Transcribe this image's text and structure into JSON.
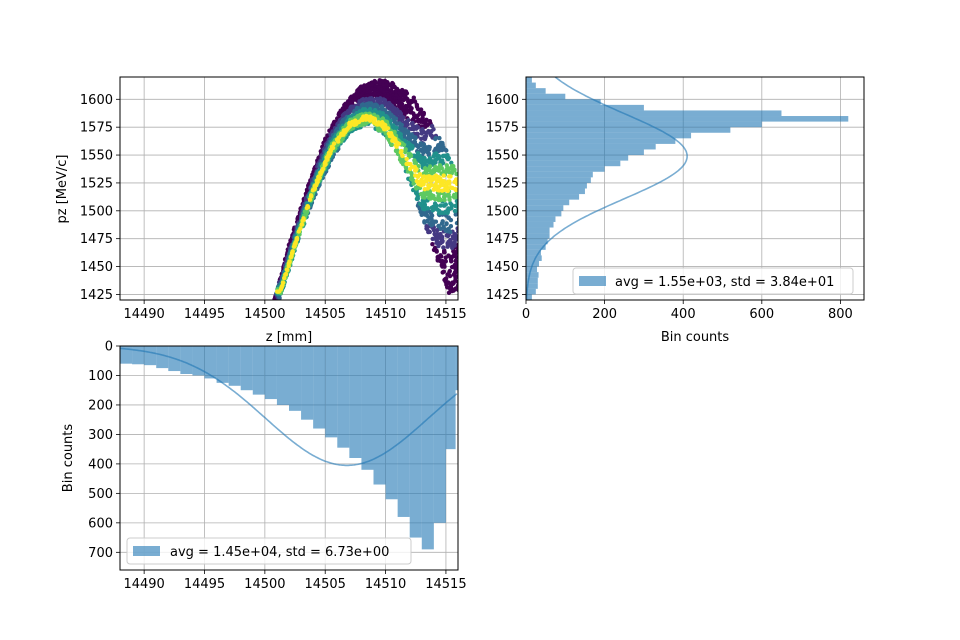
{
  "colors": {
    "hist": "#1f77b4",
    "grid": "#b0b0b0",
    "scatter_low": "#440154",
    "scatter_mid": "#21918c",
    "scatter_high": "#fde725"
  },
  "chart_data": [
    {
      "id": "scatter",
      "type": "scatter",
      "xlabel": "z [mm]",
      "ylabel": "pz [MeV/c]",
      "xlim": [
        14488,
        14516
      ],
      "ylim": [
        1420,
        1620
      ],
      "xticks": [
        "14490",
        "14495",
        "14500",
        "14505",
        "14510",
        "14515"
      ],
      "yticks": [
        "1425",
        "1450",
        "1475",
        "1500",
        "1525",
        "1550",
        "1575",
        "1600"
      ],
      "grid": true,
      "distribution": {
        "upper_edge": [
          [
            14500.8,
            1420
          ],
          [
            14502,
            1470
          ],
          [
            14503.5,
            1520
          ],
          [
            14505,
            1565
          ],
          [
            14506.5,
            1595
          ],
          [
            14508,
            1612
          ],
          [
            14509.5,
            1618
          ],
          [
            14511,
            1614
          ],
          [
            14512.5,
            1600
          ],
          [
            14514,
            1575
          ],
          [
            14515.5,
            1545
          ],
          [
            14516,
            1530
          ]
        ],
        "lower_edge": [
          [
            14501.2,
            1420
          ],
          [
            14502.5,
            1465
          ],
          [
            14504,
            1510
          ],
          [
            14505.5,
            1545
          ],
          [
            14507,
            1570
          ],
          [
            14508.5,
            1578
          ],
          [
            14510,
            1568
          ],
          [
            14511.5,
            1540
          ],
          [
            14513,
            1495
          ],
          [
            14514.5,
            1450
          ],
          [
            14515.3,
            1425
          ]
        ],
        "dense_ridge": [
          [
            14501.3,
            1428
          ],
          [
            14502.5,
            1470
          ],
          [
            14504,
            1518
          ],
          [
            14505.5,
            1555
          ],
          [
            14507,
            1577
          ],
          [
            14508.5,
            1584
          ],
          [
            14510,
            1575
          ],
          [
            14511.5,
            1550
          ],
          [
            14513,
            1525
          ]
        ]
      }
    },
    {
      "id": "pz-hist",
      "type": "bar",
      "orientation": "horizontal",
      "xlabel": "Bin counts",
      "ylabel": "",
      "xlim": [
        0,
        860
      ],
      "ylim": [
        1420,
        1620
      ],
      "xticks": [
        "0",
        "200",
        "400",
        "600",
        "800"
      ],
      "yticks": [
        "1425",
        "1450",
        "1475",
        "1500",
        "1525",
        "1550",
        "1575",
        "1600"
      ],
      "grid": true,
      "bins": [
        [
          1420,
          15
        ],
        [
          1425,
          25
        ],
        [
          1430,
          30
        ],
        [
          1435,
          30
        ],
        [
          1440,
          32
        ],
        [
          1445,
          28
        ],
        [
          1450,
          33
        ],
        [
          1455,
          40
        ],
        [
          1460,
          38
        ],
        [
          1465,
          50
        ],
        [
          1470,
          55
        ],
        [
          1475,
          60
        ],
        [
          1480,
          60
        ],
        [
          1485,
          70
        ],
        [
          1490,
          75
        ],
        [
          1495,
          90
        ],
        [
          1500,
          95
        ],
        [
          1505,
          110
        ],
        [
          1510,
          135
        ],
        [
          1515,
          150
        ],
        [
          1520,
          155
        ],
        [
          1525,
          165
        ],
        [
          1530,
          170
        ],
        [
          1535,
          200
        ],
        [
          1540,
          240
        ],
        [
          1545,
          260
        ],
        [
          1550,
          300
        ],
        [
          1555,
          330
        ],
        [
          1560,
          380
        ],
        [
          1565,
          420
        ],
        [
          1570,
          520
        ],
        [
          1575,
          600
        ],
        [
          1580,
          820
        ],
        [
          1585,
          650
        ],
        [
          1590,
          300
        ],
        [
          1595,
          190
        ],
        [
          1600,
          100
        ],
        [
          1605,
          50
        ],
        [
          1610,
          25
        ],
        [
          1615,
          15
        ]
      ],
      "fit": {
        "mean": 1549,
        "std": 38.4,
        "peak": 410
      },
      "legend": {
        "label": "avg = 1.55e+03, std = 3.84e+01",
        "position": "lower right"
      }
    },
    {
      "id": "z-hist",
      "type": "bar",
      "orientation": "vertical-inverted",
      "xlabel": "",
      "ylabel": "Bin counts",
      "xlim": [
        14488,
        14516
      ],
      "ylim": [
        760,
        0
      ],
      "xticks": [
        "14490",
        "14495",
        "14500",
        "14505",
        "14510",
        "14515"
      ],
      "yticks": [
        "0",
        "100",
        "200",
        "300",
        "400",
        "500",
        "600",
        "700"
      ],
      "grid": true,
      "bins": [
        [
          14488,
          60
        ],
        [
          14489,
          62
        ],
        [
          14490,
          65
        ],
        [
          14491,
          75
        ],
        [
          14492,
          85
        ],
        [
          14493,
          95
        ],
        [
          14494,
          100
        ],
        [
          14495,
          110
        ],
        [
          14496,
          125
        ],
        [
          14497,
          135
        ],
        [
          14498,
          150
        ],
        [
          14499,
          165
        ],
        [
          14500,
          180
        ],
        [
          14501,
          200
        ],
        [
          14502,
          220
        ],
        [
          14503,
          250
        ],
        [
          14504,
          280
        ],
        [
          14505,
          310
        ],
        [
          14506,
          345
        ],
        [
          14507,
          380
        ],
        [
          14508,
          420
        ],
        [
          14509,
          470
        ],
        [
          14510,
          520
        ],
        [
          14511,
          580
        ],
        [
          14512,
          650
        ],
        [
          14513,
          690
        ],
        [
          14514,
          600
        ],
        [
          14515,
          350
        ],
        [
          14515.8,
          150
        ]
      ],
      "fit": {
        "mean": 14506.8,
        "std": 6.73,
        "peak": 405
      },
      "legend": {
        "label": "avg = 1.45e+04, std = 6.73e+00",
        "position": "lower left"
      }
    }
  ]
}
